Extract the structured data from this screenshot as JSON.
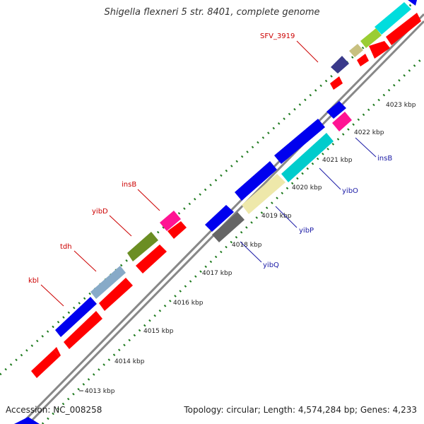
{
  "title": "Shigella flexneri 5 str. 8401, complete genome",
  "footer": {
    "accession": "Accession: NC_008258",
    "summary": "Topology: circular; Length: 4,574,284 bp; Genes: 4,233"
  },
  "ruler_ticks": [
    "4013 kbp",
    "4014 kbp",
    "4015 kbp",
    "4016 kbp",
    "4017 kbp",
    "4018 kbp",
    "4019 kbp",
    "4020 kbp",
    "4021 kbp",
    "4022 kbp",
    "4023 kbp"
  ],
  "labeled_genes_forward": [
    "SFV_3919",
    "insB",
    "yibD",
    "tdh",
    "kbl"
  ],
  "labeled_genes_reverse": [
    "insB",
    "yibO",
    "yibP",
    "yibQ"
  ],
  "colors": {
    "backbone": "#888888",
    "dots": "#1e7a1e",
    "red": "#ff0000",
    "blue": "#0000ee",
    "magenta": "#ff1493",
    "olive": "#6b8e23",
    "steelblue": "#87aac8",
    "cyan": "#00cccc",
    "khaki": "#eee8aa",
    "gray": "#666666",
    "navy": "#3a3a8a",
    "tan": "#c8c080",
    "lime": "#9acd32",
    "pos_label": "#cc0000",
    "neg_label": "#1a1aa6"
  }
}
